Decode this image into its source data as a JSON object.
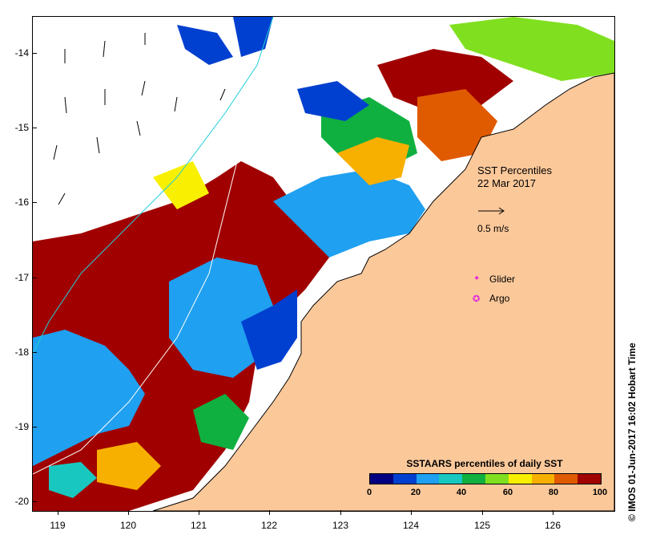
{
  "map": {
    "title": "SST Percentiles",
    "date": "22 Mar 2017",
    "scale_vector_label": "0.5 m/s",
    "markers": [
      {
        "label": "Glider",
        "symbol": "✦",
        "color": "#e020e0"
      },
      {
        "label": "Argo",
        "symbol": "✪",
        "color": "#e020e0"
      }
    ],
    "lat_labels": [
      "-14",
      "-15",
      "-16",
      "-17",
      "-18",
      "-19",
      "-20"
    ],
    "lon_labels": [
      "119",
      "120",
      "121",
      "122",
      "123",
      "124",
      "125",
      "126"
    ],
    "land_color": "#fbc89a",
    "contour_color": "#20d0d8"
  },
  "legend": {
    "title": "SSTAARS percentiles of daily SST",
    "ticks": [
      "0",
      "20",
      "40",
      "60",
      "80",
      "100"
    ],
    "colors": [
      "#000080",
      "#0040d0",
      "#1fa0f0",
      "#18c8c0",
      "#10b040",
      "#80e020",
      "#f8f000",
      "#f8b000",
      "#e05a00",
      "#a00000"
    ]
  },
  "credit": "© IMOS 01-Jun-2017 16:02 Hobart Time"
}
